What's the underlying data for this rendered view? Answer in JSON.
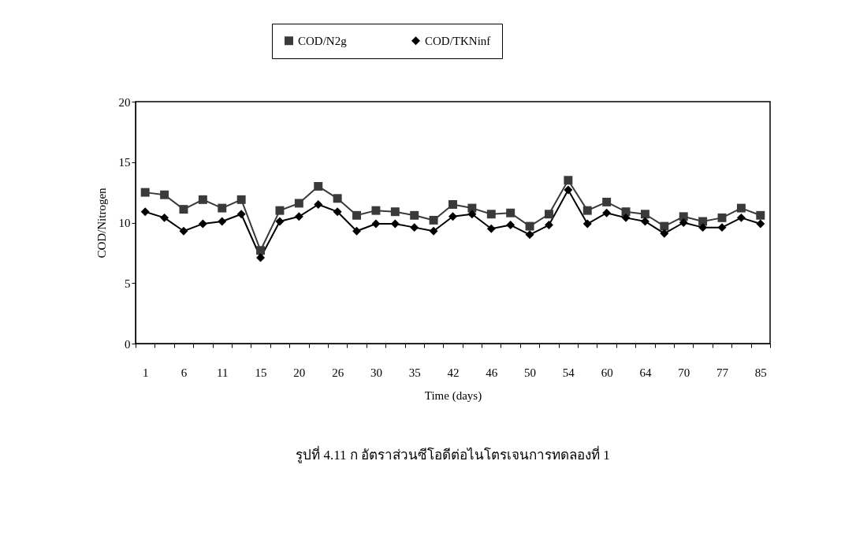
{
  "chart_data": {
    "type": "line",
    "xlabel": "Time (days)",
    "ylabel": "COD/Nitrogen",
    "categories": [
      "1",
      null,
      "6",
      null,
      "11",
      null,
      "15",
      null,
      "20",
      null,
      "26",
      null,
      "30",
      null,
      "35",
      null,
      "42",
      null,
      "46",
      null,
      "50",
      null,
      "54",
      null,
      "60",
      null,
      "64",
      null,
      "70",
      null,
      "77",
      null,
      "85"
    ],
    "series": [
      {
        "name": "COD/N2g",
        "color": "#3a3a3a",
        "marker": "square",
        "values": [
          12.5,
          12.3,
          11.1,
          11.9,
          11.2,
          11.9,
          7.7,
          11.0,
          11.6,
          13.0,
          12.0,
          10.6,
          11.0,
          10.9,
          10.6,
          10.2,
          11.5,
          11.2,
          10.7,
          10.8,
          9.7,
          10.7,
          13.5,
          11.0,
          11.7,
          10.9,
          10.7,
          9.7,
          10.5,
          10.1,
          10.4,
          11.2,
          10.6
        ]
      },
      {
        "name": "COD/TKNinf",
        "color": "#000000",
        "marker": "diamond",
        "values": [
          10.9,
          10.4,
          9.3,
          9.9,
          10.1,
          10.7,
          7.1,
          10.1,
          10.5,
          11.5,
          10.9,
          9.3,
          9.9,
          9.9,
          9.6,
          9.3,
          10.5,
          10.7,
          9.5,
          9.8,
          9.0,
          9.8,
          12.7,
          9.9,
          10.8,
          10.4,
          10.1,
          9.1,
          10.0,
          9.6,
          9.6,
          10.4,
          9.9
        ]
      }
    ],
    "ylim": [
      0,
      20
    ],
    "yticks": [
      0,
      5,
      10,
      15,
      20
    ],
    "grid": false,
    "legend": "top",
    "annotations": [
      "รูปที่ 4.11 ก อัตราส่วนซีโอดีต่อไนโตรเจนการทดลองที่ 1"
    ]
  }
}
